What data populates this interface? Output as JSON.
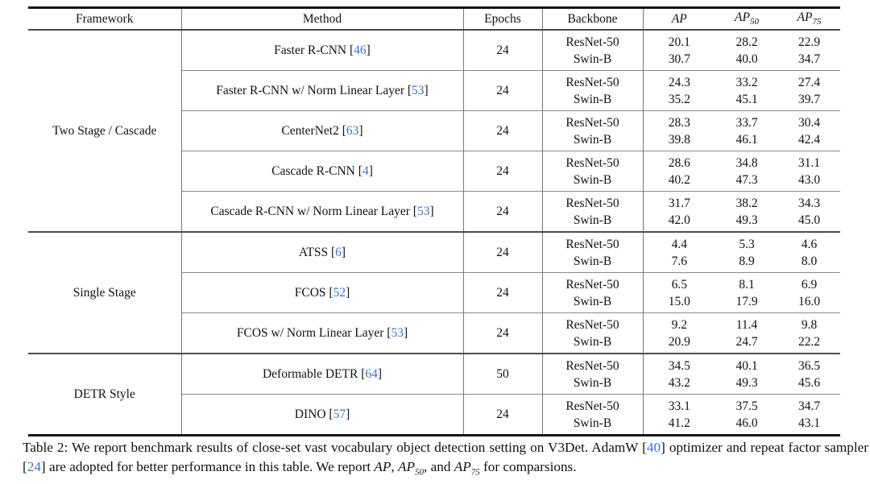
{
  "colors": {
    "citation_blue": "#3d6fd6",
    "text": "#111111",
    "rule_heavy": "#161616",
    "rule_mid": "#4c4c4c",
    "rule_light": "#8a8a8a"
  },
  "table": {
    "headers": {
      "framework": "Framework",
      "method": "Method",
      "epochs": "Epochs",
      "backbone": "Backbone",
      "ap": {
        "base": "AP",
        "sub": ""
      },
      "ap50": {
        "base": "AP",
        "sub": "50"
      },
      "ap75": {
        "base": "AP",
        "sub": "75"
      }
    },
    "sections": [
      {
        "framework": "Two Stage / Cascade",
        "rows": [
          {
            "method": "Faster R-CNN",
            "cite": "46",
            "epochs": "24",
            "backbones": [
              "ResNet-50",
              "Swin-B"
            ],
            "ap": [
              "20.1",
              "30.7"
            ],
            "ap50": [
              "28.2",
              "40.0"
            ],
            "ap75": [
              "22.9",
              "34.7"
            ]
          },
          {
            "method": "Faster R-CNN w/ Norm Linear Layer",
            "cite": "53",
            "epochs": "24",
            "backbones": [
              "ResNet-50",
              "Swin-B"
            ],
            "ap": [
              "24.3",
              "35.2"
            ],
            "ap50": [
              "33.2",
              "45.1"
            ],
            "ap75": [
              "27.4",
              "39.7"
            ]
          },
          {
            "method": "CenterNet2",
            "cite": "63",
            "epochs": "24",
            "backbones": [
              "ResNet-50",
              "Swin-B"
            ],
            "ap": [
              "28.3",
              "39.8"
            ],
            "ap50": [
              "33.7",
              "46.1"
            ],
            "ap75": [
              "30.4",
              "42.4"
            ]
          },
          {
            "method": "Cascade R-CNN",
            "cite": "4",
            "epochs": "24",
            "backbones": [
              "ResNet-50",
              "Swin-B"
            ],
            "ap": [
              "28.6",
              "40.2"
            ],
            "ap50": [
              "34.8",
              "47.3"
            ],
            "ap75": [
              "31.1",
              "43.0"
            ]
          },
          {
            "method": "Cascade R-CNN w/ Norm Linear Layer",
            "cite": "53",
            "epochs": "24",
            "backbones": [
              "ResNet-50",
              "Swin-B"
            ],
            "ap": [
              "31.7",
              "42.0"
            ],
            "ap50": [
              "38.2",
              "49.3"
            ],
            "ap75": [
              "34.3",
              "45.0"
            ]
          }
        ]
      },
      {
        "framework": "Single Stage",
        "rows": [
          {
            "method": "ATSS",
            "cite": "6",
            "epochs": "24",
            "backbones": [
              "ResNet-50",
              "Swin-B"
            ],
            "ap": [
              "4.4",
              "7.6"
            ],
            "ap50": [
              "5.3",
              "8.9"
            ],
            "ap75": [
              "4.6",
              "8.0"
            ]
          },
          {
            "method": "FCOS",
            "cite": "52",
            "epochs": "24",
            "backbones": [
              "ResNet-50",
              "Swin-B"
            ],
            "ap": [
              "6.5",
              "15.0"
            ],
            "ap50": [
              "8.1",
              "17.9"
            ],
            "ap75": [
              "6.9",
              "16.0"
            ]
          },
          {
            "method": "FCOS w/ Norm Linear Layer",
            "cite": "53",
            "epochs": "24",
            "backbones": [
              "ResNet-50",
              "Swin-B"
            ],
            "ap": [
              "9.2",
              "20.9"
            ],
            "ap50": [
              "11.4",
              "24.7"
            ],
            "ap75": [
              "9.8",
              "22.2"
            ]
          }
        ]
      },
      {
        "framework": "DETR Style",
        "rows": [
          {
            "method": "Deformable DETR",
            "cite": "64",
            "epochs": "50",
            "backbones": [
              "ResNet-50",
              "Swin-B"
            ],
            "ap": [
              "34.5",
              "43.2"
            ],
            "ap50": [
              "40.1",
              "49.3"
            ],
            "ap75": [
              "36.5",
              "45.6"
            ]
          },
          {
            "method": "DINO",
            "cite": "57",
            "epochs": "24",
            "backbones": [
              "ResNet-50",
              "Swin-B"
            ],
            "ap": [
              "33.1",
              "41.2"
            ],
            "ap50": [
              "37.5",
              "46.0"
            ],
            "ap75": [
              "34.7",
              "43.1"
            ]
          }
        ]
      }
    ]
  },
  "caption": {
    "segments": [
      {
        "t": "text",
        "v": "Table 2: We report benchmark results of close-set vast vocabulary object detection setting on V3Det. AdamW "
      },
      {
        "t": "cite",
        "v": "40"
      },
      {
        "t": "text",
        "v": " optimizer and repeat factor sampler "
      },
      {
        "t": "cite",
        "v": "24"
      },
      {
        "t": "text",
        "v": " are adopted for better performance in this table. We report "
      },
      {
        "t": "math",
        "v": "AP",
        "sub": ""
      },
      {
        "t": "text",
        "v": ", "
      },
      {
        "t": "math",
        "v": "AP",
        "sub": "50"
      },
      {
        "t": "text",
        "v": ", and "
      },
      {
        "t": "math",
        "v": "AP",
        "sub": "75"
      },
      {
        "t": "text",
        "v": " for comparsions."
      }
    ]
  }
}
